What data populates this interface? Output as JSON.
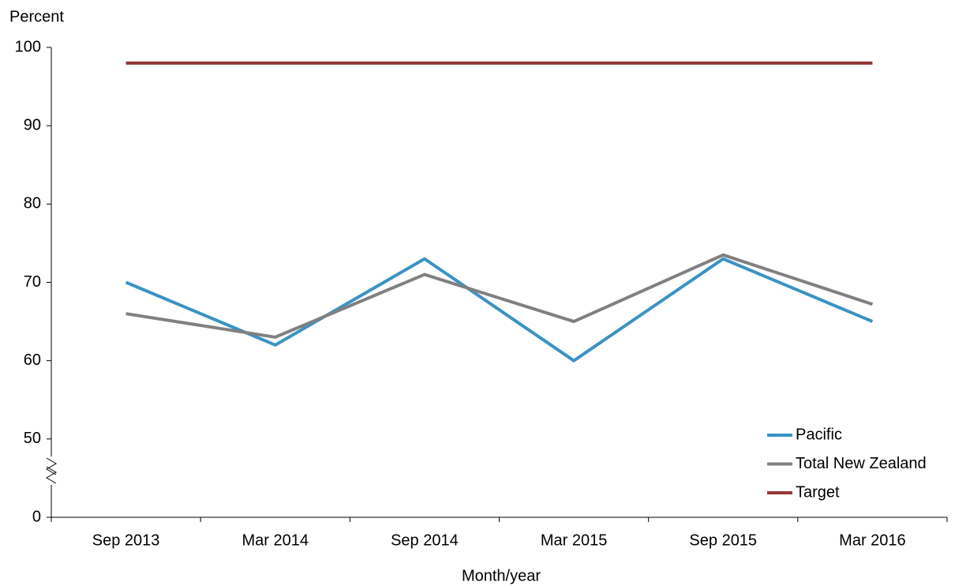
{
  "chart_data": {
    "type": "line",
    "y_axis_title": "Percent",
    "x_axis_title": "Month/year",
    "categories": [
      "Sep 2013",
      "Mar 2014",
      "Sep 2014",
      "Mar 2015",
      "Sep 2015",
      "Mar 2016"
    ],
    "series": [
      {
        "name": "Pacific",
        "color": "#3a93c3",
        "values": [
          70,
          62,
          73,
          60,
          73,
          65
        ]
      },
      {
        "name": "Total New Zealand",
        "color": "#808080",
        "values": [
          66,
          63,
          71,
          65,
          73.5,
          67.2
        ]
      },
      {
        "name": "Target",
        "color": "#953735",
        "values": [
          98,
          98,
          98,
          98,
          98,
          98
        ]
      }
    ],
    "ylim": [
      0,
      100
    ],
    "yticks": [
      0,
      50,
      60,
      70,
      80,
      90,
      100
    ],
    "axis_break": [
      0,
      50
    ],
    "legend": "lower right"
  }
}
